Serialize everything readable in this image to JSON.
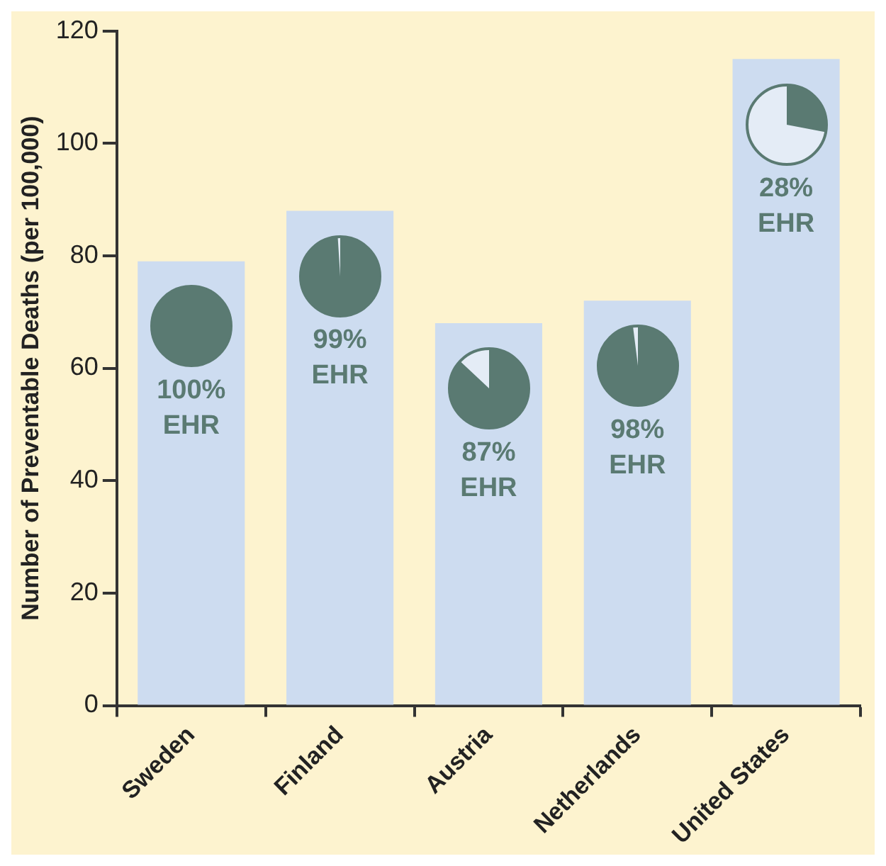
{
  "chart_data": {
    "type": "bar",
    "ylabel": "Number of Preventable Deaths (per 100,000)",
    "categories": [
      "Sweden",
      "Finland",
      "Austria",
      "Netherlands",
      "United States"
    ],
    "values": [
      79,
      88,
      68,
      72,
      115
    ],
    "color": "#cddcf0",
    "ylim": [
      0,
      120
    ],
    "yticks": [
      0,
      20,
      40,
      60,
      80,
      100,
      120
    ],
    "grid": false,
    "legend": false,
    "annotations": [
      "100% EHR",
      "99% EHR",
      "87% EHR",
      "98% EHR",
      "28% EHR"
    ]
  }
}
